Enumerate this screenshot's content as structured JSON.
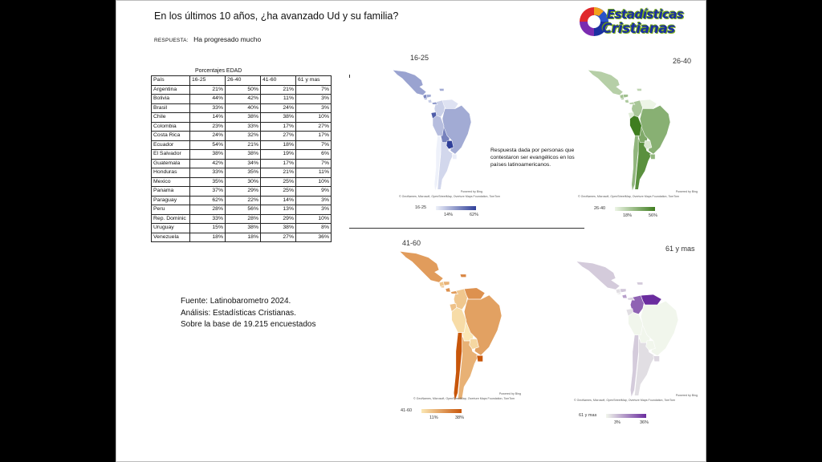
{
  "title": "En los últimos 10 años, ¿ha avanzado Ud y su familia?",
  "respuesta_label": "RESPUESTA:",
  "respuesta_value": "Ha progresado mucho",
  "logo": {
    "line1": "Estadísticas",
    "line2": "Cristianas"
  },
  "table": {
    "title": "Porcentajes EDAD",
    "headers": [
      "País",
      "16-25",
      "26-40",
      "41-60",
      "61 y mas"
    ],
    "rows": [
      [
        "Argentina",
        "21%",
        "50%",
        "21%",
        "7%"
      ],
      [
        "Bolivia",
        "44%",
        "42%",
        "11%",
        "3%"
      ],
      [
        "Brasil",
        "33%",
        "40%",
        "24%",
        "3%"
      ],
      [
        "Chile",
        "14%",
        "38%",
        "38%",
        "10%"
      ],
      [
        "Colombia",
        "23%",
        "33%",
        "17%",
        "27%"
      ],
      [
        "Costa Rica",
        "24%",
        "32%",
        "27%",
        "17%"
      ],
      [
        "Ecuador",
        "54%",
        "21%",
        "18%",
        "7%"
      ],
      [
        "El Salvador",
        "38%",
        "38%",
        "19%",
        "6%"
      ],
      [
        "Guatemala",
        "42%",
        "34%",
        "17%",
        "7%"
      ],
      [
        "Honduras",
        "33%",
        "35%",
        "21%",
        "11%"
      ],
      [
        "Mexico",
        "35%",
        "30%",
        "25%",
        "10%"
      ],
      [
        "Panama",
        "37%",
        "29%",
        "25%",
        "9%"
      ],
      [
        "Paraguay",
        "62%",
        "22%",
        "14%",
        "3%"
      ],
      [
        "Peru",
        "28%",
        "56%",
        "13%",
        "3%"
      ],
      [
        "Rep. Dominic",
        "33%",
        "28%",
        "29%",
        "10%"
      ],
      [
        "Uruguay",
        "15%",
        "38%",
        "38%",
        "8%"
      ],
      [
        "Venezuela",
        "18%",
        "18%",
        "27%",
        "36%"
      ]
    ]
  },
  "source": {
    "line1": "Fuente: Latinobarometro 2024.",
    "line2": "Análisis: Estadísticas Cristianas.",
    "line3": "Sobre la base de 19.215 encuestados"
  },
  "note": "Respuesta dada por personas que contestaron ser evangélicos en los países latinoamericanos.",
  "map_attribution": "© GeoNames, Microsoft, OpenStreetMap, Overture Maps Foundation, TomTom",
  "map_powered": "Powered by Bing",
  "colors": {
    "16-25": {
      "low": "#eef1fa",
      "high": "#2f3f99"
    },
    "26-40": {
      "low": "#edf5e6",
      "high": "#3f7d1f"
    },
    "41-60": {
      "low": "#fbe7b4",
      "high": "#c8560a"
    },
    "61 y mas": {
      "low": "#f1f6ec",
      "high": "#6a2c9e"
    }
  },
  "chart_data": [
    {
      "type": "map",
      "title": "16-25",
      "legend": {
        "label": "16-25",
        "min": "14%",
        "max": "62%"
      }
    },
    {
      "type": "map",
      "title": "26-40",
      "legend": {
        "label": "26-40",
        "min": "18%",
        "max": "56%"
      }
    },
    {
      "type": "map",
      "title": "41-60",
      "legend": {
        "label": "41-60",
        "min": "11%",
        "max": "38%"
      }
    },
    {
      "type": "map",
      "title": "61 y mas",
      "legend": {
        "label": "61 y mas",
        "min": "3%",
        "max": "36%"
      }
    }
  ]
}
